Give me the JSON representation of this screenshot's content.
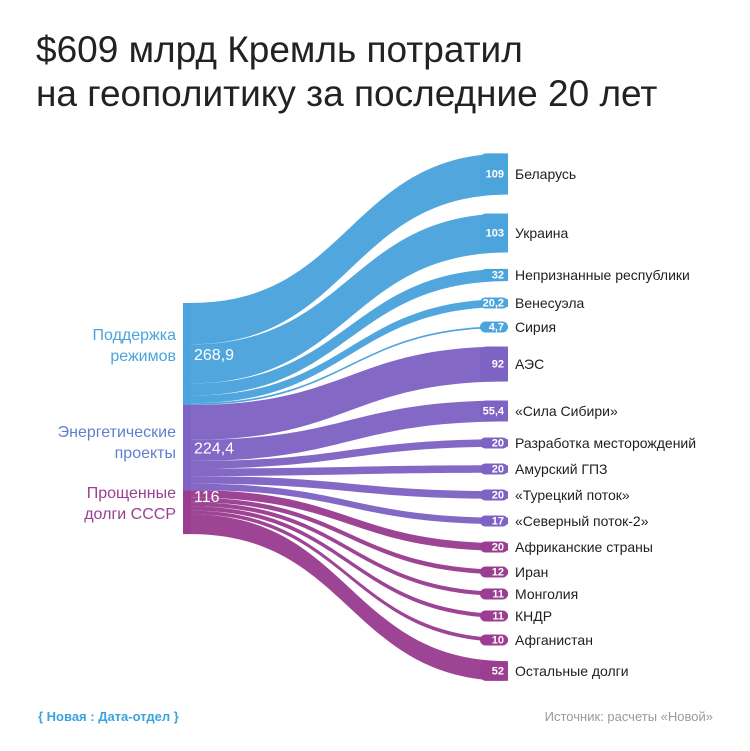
{
  "title": {
    "line1": "$609 млрд Кремль потратил",
    "line2": "на геополитику за последние 20 лет"
  },
  "footer": {
    "brand": "{ Новая : Дата-отдел }",
    "source": "Источник: расчеты «Новой»"
  },
  "colors": {
    "regimes": "#4ba4dc",
    "energy": "#7f63c4",
    "debts": "#9b3e92",
    "regimes_text": "#4ba4dc",
    "energy_text": "#5f7fce",
    "debts_text": "#9b3e92"
  },
  "chart_data": {
    "type": "sankey",
    "title": "$609 млрд Кремль потратил на геополитику за последние 20 лет",
    "total": 609,
    "sources": [
      {
        "key": "regimes",
        "label_lines": [
          "Поддержка",
          "режимов"
        ],
        "value_label": "268,9",
        "value": 268.9
      },
      {
        "key": "energy",
        "label_lines": [
          "Энергетические",
          "проекты"
        ],
        "value_label": "224,4",
        "value": 224.4
      },
      {
        "key": "debts",
        "label_lines": [
          "Прощенные",
          "долги СССР"
        ],
        "value_label": "116",
        "value": 116
      }
    ],
    "targets": [
      {
        "source": "regimes",
        "name": "Беларусь",
        "value_label": "109",
        "value": 109
      },
      {
        "source": "regimes",
        "name": "Украина",
        "value_label": "103",
        "value": 103
      },
      {
        "source": "regimes",
        "name": "Непризнанные республики",
        "value_label": "32",
        "value": 32
      },
      {
        "source": "regimes",
        "name": "Венесуэла",
        "value_label": "20,2",
        "value": 20.2
      },
      {
        "source": "regimes",
        "name": "Сирия",
        "value_label": "4,7",
        "value": 4.7
      },
      {
        "source": "energy",
        "name": "АЭС",
        "value_label": "92",
        "value": 92
      },
      {
        "source": "energy",
        "name": "«Сила Сибири»",
        "value_label": "55,4",
        "value": 55.4
      },
      {
        "source": "energy",
        "name": "Разработка месторождений",
        "value_label": "20",
        "value": 20
      },
      {
        "source": "energy",
        "name": "Амурский ГПЗ",
        "value_label": "20",
        "value": 20
      },
      {
        "source": "energy",
        "name": "«Турецкий поток»",
        "value_label": "20",
        "value": 20
      },
      {
        "source": "energy",
        "name": "«Северный поток-2»",
        "value_label": "17",
        "value": 17
      },
      {
        "source": "debts",
        "name": "Африканские страны",
        "value_label": "20",
        "value": 20
      },
      {
        "source": "debts",
        "name": "Иран",
        "value_label": "12",
        "value": 12
      },
      {
        "source": "debts",
        "name": "Монголия",
        "value_label": "11",
        "value": 11
      },
      {
        "source": "debts",
        "name": "КНДР",
        "value_label": "11",
        "value": 11
      },
      {
        "source": "debts",
        "name": "Афганистан",
        "value_label": "10",
        "value": 10
      },
      {
        "source": "debts",
        "name": "Остальные долги",
        "value_label": "52",
        "value": 52
      }
    ]
  }
}
